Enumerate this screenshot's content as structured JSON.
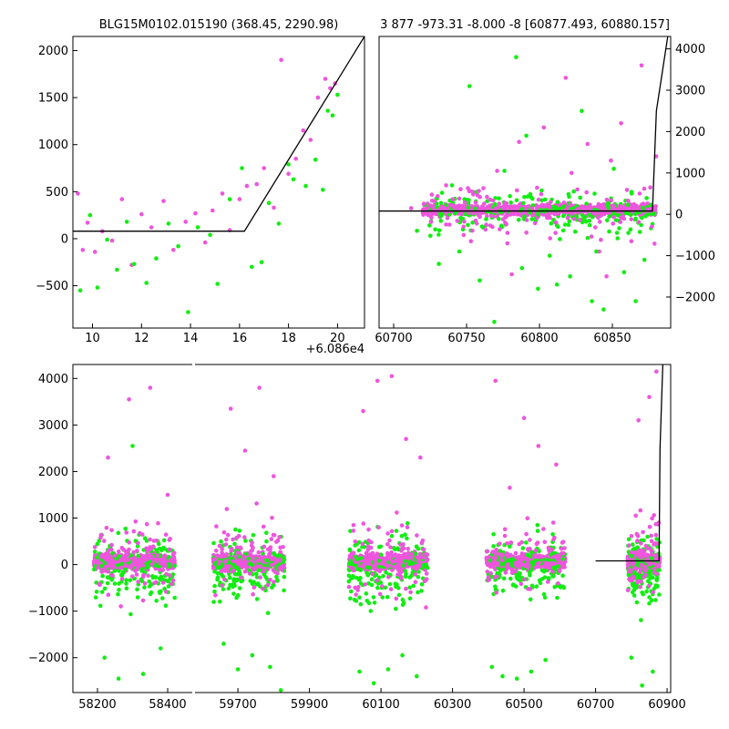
{
  "colors": {
    "magenta": "#ee55dd",
    "green": "#11ee11",
    "fit": "#000000"
  },
  "chart_data": [
    {
      "type": "scatter",
      "title": "BLG15M0102.015190 (368.45, 2290.98)",
      "x_offset_label": "+6.086e4",
      "xlim": [
        9.2,
        21.1
      ],
      "ylim": [
        -950,
        2150
      ],
      "xticks": [
        10,
        12,
        14,
        16,
        18,
        20
      ],
      "yticks": [
        -500,
        0,
        500,
        1000,
        1500,
        2000
      ],
      "ytick_labels": [
        "−500",
        "0",
        "500",
        "1000",
        "1500",
        "2000"
      ],
      "fit_line": {
        "x": [
          9.2,
          16.2,
          21.1
        ],
        "y": [
          80,
          80,
          2150
        ]
      },
      "series": [
        {
          "color": "magenta",
          "x": [
            9.4,
            9.6,
            9.8,
            10.1,
            10.4,
            10.8,
            11.2,
            11.6,
            12.0,
            12.4,
            12.9,
            13.3,
            13.8,
            14.2,
            14.6,
            14.9,
            15.3,
            15.6,
            16.0,
            16.3,
            16.7,
            17.0,
            17.4,
            17.7,
            18.0,
            18.3,
            18.6,
            18.9,
            19.2,
            19.5,
            19.7,
            19.9
          ],
          "y": [
            480,
            -120,
            170,
            -140,
            80,
            -20,
            420,
            -280,
            260,
            120,
            400,
            -120,
            180,
            270,
            -40,
            300,
            480,
            90,
            420,
            560,
            580,
            750,
            330,
            1900,
            690,
            850,
            1150,
            1050,
            1500,
            1700,
            1600,
            1650
          ]
        },
        {
          "color": "green",
          "x": [
            9.5,
            9.9,
            10.2,
            10.6,
            11.0,
            11.4,
            11.7,
            12.2,
            12.6,
            13.1,
            13.5,
            13.9,
            14.3,
            14.8,
            15.1,
            15.6,
            16.1,
            16.5,
            16.9,
            17.2,
            17.6,
            18.0,
            18.2,
            18.7,
            19.1,
            19.4,
            19.6,
            19.8,
            20.0
          ],
          "y": [
            -550,
            250,
            -520,
            -10,
            -330,
            180,
            -270,
            -470,
            -210,
            160,
            -80,
            -780,
            120,
            40,
            -480,
            420,
            750,
            -300,
            -250,
            380,
            160,
            790,
            630,
            560,
            840,
            520,
            1360,
            1310,
            1530
          ]
        }
      ]
    },
    {
      "type": "scatter",
      "title": "3 877 -973.31 -8.000 -8 [60877.493, 60880.157]",
      "xlim": [
        60690,
        60890
      ],
      "ylim": [
        -2750,
        4300
      ],
      "xticks": [
        60700,
        60750,
        60800,
        60850
      ],
      "yticks": [
        -2000,
        -1000,
        0,
        1000,
        2000,
        3000,
        4000
      ],
      "ytick_labels": [
        "−2000",
        "−1000",
        "0",
        "1000",
        "2000",
        "3000",
        "4000"
      ],
      "fit_line": {
        "x": [
          60690,
          60877.5,
          60880.2,
          60888
        ],
        "y": [
          80,
          80,
          2500,
          4300
        ]
      },
      "series": [
        {
          "color": "magenta",
          "x": [
            60712,
            60728,
            60736,
            60748,
            60757,
            60764,
            60771,
            60778,
            60786,
            60795,
            60803,
            60811,
            60818,
            60826,
            60833,
            60841,
            60849,
            60856,
            60863,
            60870,
            60876,
            60880,
            60753,
            60781,
            60822,
            60846
          ],
          "y": [
            150,
            320,
            700,
            -500,
            -220,
            420,
            1050,
            -700,
            1750,
            150,
            2100,
            -450,
            3300,
            600,
            1700,
            -900,
            1300,
            2200,
            -650,
            3600,
            650,
            1400,
            -650,
            -1450,
            1000,
            -1500
          ]
        },
        {
          "color": "green",
          "x": [
            60716,
            60731,
            60740,
            60752,
            60759,
            60769,
            60776,
            60784,
            60791,
            60799,
            60807,
            60814,
            60821,
            60829,
            60836,
            60844,
            60851,
            60858,
            60866,
            60872,
            60745,
            60788,
            60812,
            60839,
            60861
          ],
          "y": [
            -400,
            -1200,
            700,
            3100,
            -1600,
            -2600,
            1050,
            3800,
            1900,
            -1800,
            -1000,
            -600,
            -1500,
            2500,
            -2100,
            -2300,
            1100,
            -1400,
            -2100,
            -1100,
            -900,
            -1300,
            -1700,
            -900,
            -450
          ]
        }
      ]
    },
    {
      "type": "scatter",
      "title": "",
      "ylim": [
        -2750,
        4300
      ],
      "yticks": [
        -2000,
        -1000,
        0,
        1000,
        2000,
        3000,
        4000
      ],
      "ytick_labels": [
        "−2000",
        "−1000",
        "0",
        "1000",
        "2000",
        "3000",
        "4000"
      ],
      "segments": [
        {
          "xlim": [
            58130,
            58470
          ],
          "xticks": [
            58200,
            58400
          ]
        },
        {
          "xlim": [
            59580,
            60910
          ],
          "xticks": [
            59700,
            59900,
            60100,
            60300,
            60500,
            60700,
            60900
          ]
        }
      ],
      "seasons": [
        [
          58190,
          58420
        ],
        [
          59630,
          59830
        ],
        [
          60010,
          60230
        ],
        [
          60395,
          60615
        ],
        [
          60790,
          60880
        ]
      ],
      "fit_line": {
        "x": [
          60700,
          60877.5,
          60880.2,
          60888
        ],
        "y": [
          80,
          80,
          2500,
          4300
        ]
      },
      "series": [
        {
          "color": "magenta",
          "x": [
            58230,
            58290,
            58350,
            58400,
            59680,
            59720,
            59760,
            59800,
            60050,
            60090,
            60130,
            60170,
            60210,
            60420,
            60460,
            60500,
            60540,
            60590,
            60820,
            60850,
            60870
          ],
          "y": [
            2300,
            3550,
            3800,
            1500,
            3350,
            2450,
            3800,
            1900,
            3300,
            3950,
            4050,
            2700,
            2300,
            3950,
            1650,
            3150,
            2550,
            2150,
            3100,
            3600,
            4150
          ]
        },
        {
          "color": "green",
          "x": [
            58220,
            58260,
            58300,
            58330,
            58380,
            59660,
            59700,
            59740,
            59790,
            59820,
            60040,
            60080,
            60120,
            60160,
            60200,
            60410,
            60440,
            60480,
            60520,
            60560,
            60800,
            60830,
            60860
          ],
          "y": [
            -2000,
            -2450,
            2550,
            -2350,
            -1800,
            -1700,
            -2250,
            -1950,
            -2200,
            -2700,
            -2300,
            -2550,
            -2250,
            -1950,
            -2400,
            -2200,
            -2400,
            -2450,
            -2300,
            -2050,
            -2000,
            -2600,
            -2300
          ]
        }
      ]
    }
  ]
}
